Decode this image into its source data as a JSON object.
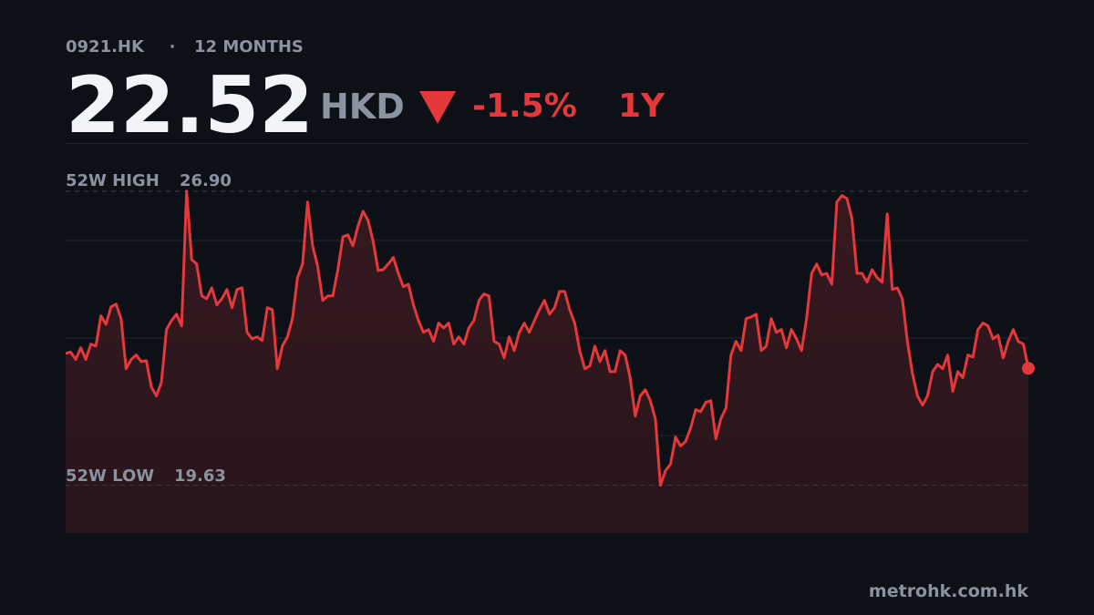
{
  "chart_data": {
    "type": "line",
    "ticker": "0921.HK",
    "separator": "·",
    "range_label": "12 MONTHS",
    "price": 22.52,
    "currency": "HKD",
    "change": {
      "value": -1.5,
      "label": "-1.5%"
    },
    "period": "1Y",
    "high_label": "52W HIGH",
    "high": {
      "value": 26.9,
      "label": "26.90"
    },
    "low_label": "52W LOW",
    "low": {
      "value": 19.63,
      "label": "19.63"
    },
    "source": "metrohk.com.hk",
    "color": "#e5383b",
    "ylim": [
      18.45,
      28.09
    ],
    "values": [
      22.89,
      22.92,
      22.74,
      23.03,
      22.74,
      23.12,
      23.07,
      23.82,
      23.61,
      24.04,
      24.11,
      23.75,
      22.51,
      22.74,
      22.85,
      22.69,
      22.71,
      22.06,
      21.84,
      22.17,
      23.48,
      23.7,
      23.86,
      23.57,
      26.9,
      25.21,
      25.1,
      24.31,
      24.24,
      24.51,
      24.09,
      24.24,
      24.47,
      24.02,
      24.47,
      24.51,
      23.41,
      23.25,
      23.3,
      23.21,
      24.02,
      23.97,
      22.51,
      23.07,
      23.3,
      23.75,
      24.76,
      25.1,
      26.63,
      25.55,
      25.05,
      24.2,
      24.31,
      24.31,
      24.96,
      25.77,
      25.82,
      25.55,
      26.04,
      26.4,
      26.18,
      25.66,
      24.94,
      24.96,
      25.1,
      25.26,
      24.87,
      24.54,
      24.6,
      24.09,
      23.7,
      23.41,
      23.48,
      23.19,
      23.64,
      23.52,
      23.64,
      23.12,
      23.3,
      23.12,
      23.52,
      23.7,
      24.2,
      24.36,
      24.31,
      23.19,
      23.12,
      22.78,
      23.3,
      22.96,
      23.41,
      23.64,
      23.41,
      23.7,
      23.97,
      24.2,
      23.86,
      24.02,
      24.42,
      24.42,
      23.97,
      23.64,
      22.96,
      22.51,
      22.58,
      23.07,
      22.69,
      22.96,
      22.44,
      22.44,
      22.96,
      22.85,
      22.29,
      21.34,
      21.84,
      21.99,
      21.72,
      21.27,
      19.63,
      19.99,
      20.15,
      20.82,
      20.6,
      20.71,
      21.05,
      21.5,
      21.45,
      21.68,
      21.72,
      20.78,
      21.27,
      21.54,
      22.85,
      23.19,
      22.96,
      23.75,
      23.79,
      23.86,
      22.96,
      23.07,
      23.75,
      23.41,
      23.48,
      23.03,
      23.48,
      23.25,
      22.96,
      23.75,
      24.87,
      25.1,
      24.83,
      24.87,
      24.6,
      26.63,
      26.79,
      26.72,
      26.22,
      24.87,
      24.87,
      24.65,
      24.96,
      24.76,
      24.65,
      26.34,
      24.47,
      24.51,
      24.24,
      23.19,
      22.4,
      21.84,
      21.61,
      21.84,
      22.44,
      22.62,
      22.51,
      22.85,
      21.95,
      22.44,
      22.29,
      22.85,
      22.8,
      23.48,
      23.64,
      23.57,
      23.25,
      23.34,
      22.78,
      23.19,
      23.48,
      23.19,
      23.12,
      22.52
    ]
  }
}
